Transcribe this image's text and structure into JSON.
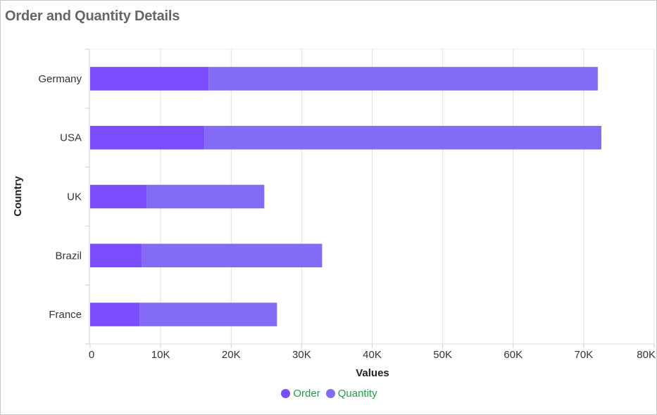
{
  "header": {
    "title": "Order and Quantity Details"
  },
  "chart_data": {
    "type": "bar",
    "orientation": "horizontal",
    "stacked": true,
    "title": "Order and Quantity Details",
    "xlabel": "Values",
    "ylabel": "Country",
    "categories": [
      "Germany",
      "USA",
      "UK",
      "Brazil",
      "France"
    ],
    "series": [
      {
        "name": "Order",
        "color": "#7c4dff",
        "values": [
          16800,
          16200,
          8000,
          7300,
          7000
        ]
      },
      {
        "name": "Quantity",
        "color": "#836bf7",
        "values": [
          55200,
          56300,
          16700,
          25600,
          19500
        ]
      }
    ],
    "xlim": [
      0,
      80000
    ],
    "xticks": [
      0,
      10000,
      20000,
      30000,
      40000,
      50000,
      60000,
      70000,
      80000
    ],
    "xtick_labels": [
      "0",
      "10K",
      "20K",
      "30K",
      "40K",
      "50K",
      "60K",
      "70K",
      "80K"
    ],
    "grid": true,
    "legend_position": "bottom"
  },
  "legend": {
    "items": [
      {
        "label": "Order",
        "color": "#7c4dff"
      },
      {
        "label": "Quantity",
        "color": "#836bf7"
      }
    ],
    "text_color": "#1e9e4a"
  }
}
